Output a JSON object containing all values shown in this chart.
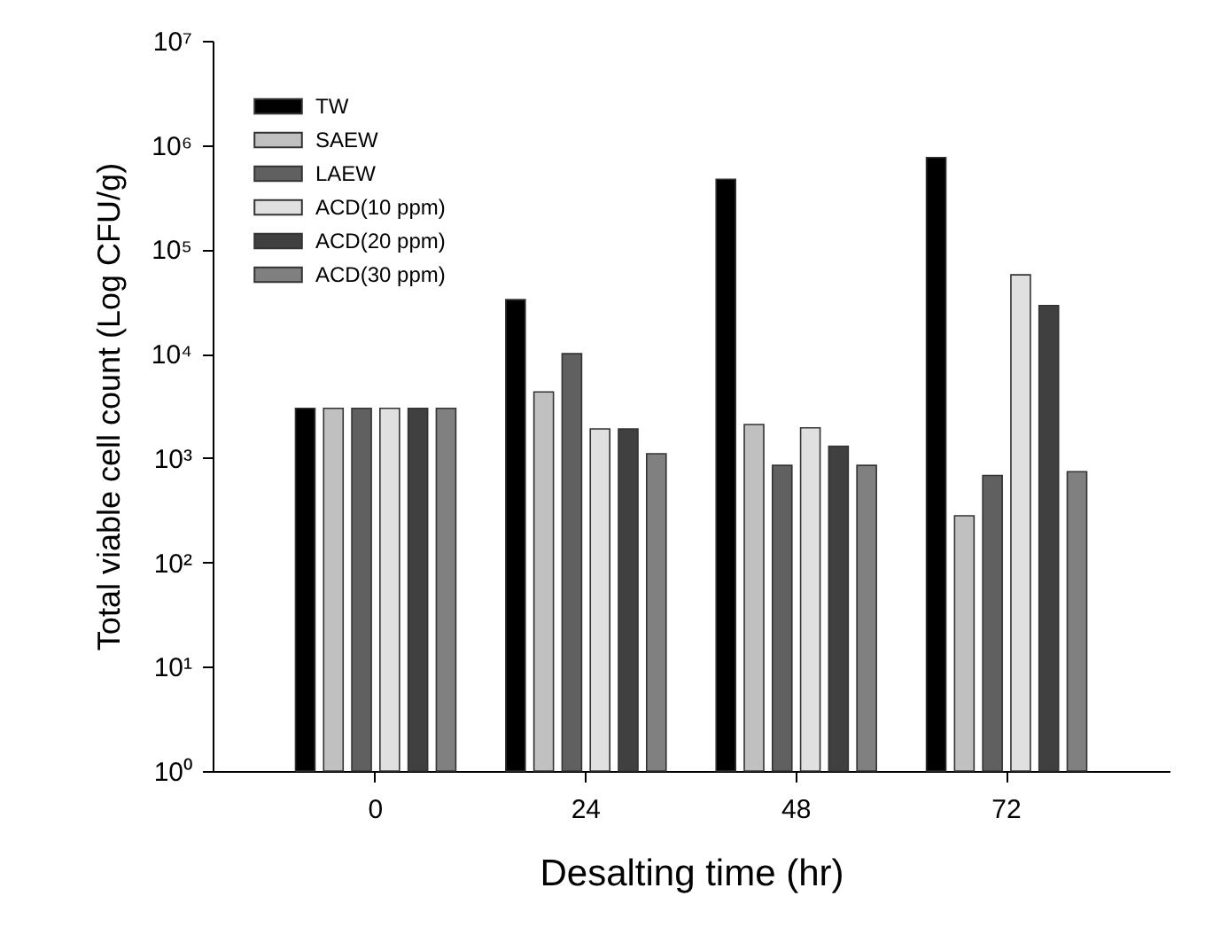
{
  "chart_data": {
    "type": "bar",
    "xlabel": "Desalting time (hr)",
    "ylabel": "Total viable cell count (Log CFU/g)",
    "categories": [
      "0",
      "24",
      "48",
      "72"
    ],
    "series": [
      {
        "name": "TW",
        "color": "#000000",
        "values": [
          3000,
          33000,
          470000,
          760000
        ]
      },
      {
        "name": "SAEW",
        "color": "#c0c0c0",
        "values": [
          3000,
          4300,
          2100,
          280
        ]
      },
      {
        "name": "LAEW",
        "color": "#606060",
        "values": [
          3000,
          10000,
          850,
          680
        ]
      },
      {
        "name": "ACD(10 ppm)",
        "color": "#e0e0e0",
        "values": [
          3000,
          1900,
          1950,
          57000
        ]
      },
      {
        "name": "ACD(20 ppm)",
        "color": "#404040",
        "values": [
          3000,
          1900,
          1300,
          29000
        ]
      },
      {
        "name": "ACD(30 ppm)",
        "color": "#808080",
        "values": [
          3000,
          1100,
          850,
          740
        ]
      }
    ],
    "log": "y",
    "ylim": [
      1,
      10000000
    ],
    "yticks": [
      {
        "value": 1,
        "label": "10⁰"
      },
      {
        "value": 10,
        "label": "10¹"
      },
      {
        "value": 100,
        "label": "10²"
      },
      {
        "value": 1000,
        "label": "10³"
      },
      {
        "value": 10000,
        "label": "10⁴"
      },
      {
        "value": 100000,
        "label": "10⁵"
      },
      {
        "value": 1000000,
        "label": "10⁶"
      },
      {
        "value": 10000000,
        "label": "10⁷"
      }
    ],
    "legend": "top left",
    "grid": false
  }
}
